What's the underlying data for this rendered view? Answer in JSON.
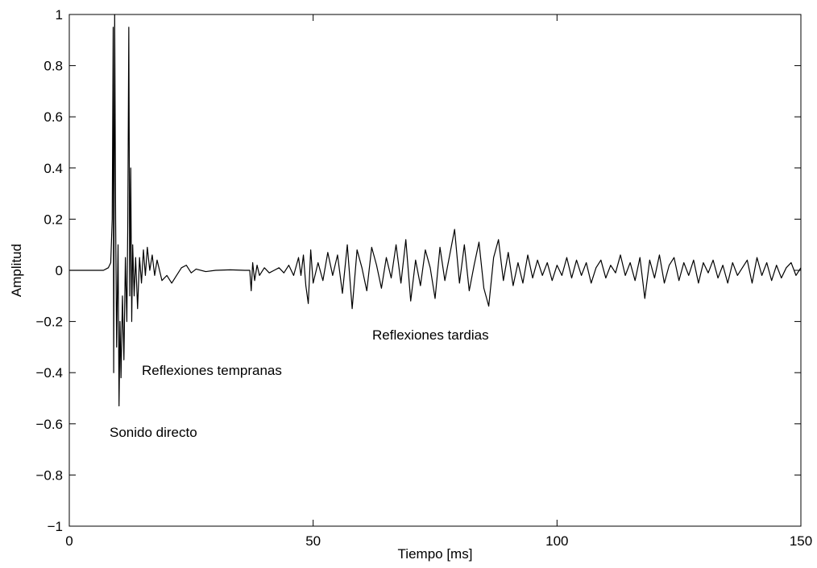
{
  "chart_data": {
    "type": "line",
    "xlabel": "Tiempo [ms]",
    "ylabel": "Amplitud",
    "annotations": [
      "Sonido directo",
      "Reflexiones tempranas",
      "Reflexiones tardias"
    ],
    "xlim": [
      0,
      150
    ],
    "xticks": [
      0,
      50,
      100,
      150
    ],
    "ylim": [
      -1,
      1
    ],
    "yticks": [
      {
        "value": -1,
        "label": "−1"
      },
      {
        "value": -0.8,
        "label": "−0.8"
      },
      {
        "value": -0.6,
        "label": "−0.6"
      },
      {
        "value": -0.4,
        "label": "−0.4"
      },
      {
        "value": -0.2,
        "label": "−0.2"
      },
      0,
      0.2,
      0.4,
      0.6,
      0.8,
      1
    ],
    "series": [
      {
        "color": "#000000",
        "x": [
          0,
          7,
          7.5,
          8,
          8.5,
          8.8,
          9,
          9.1,
          9.3,
          9.5,
          9.7,
          10,
          10.2,
          10.4,
          10.6,
          10.9,
          11.2,
          11.5,
          11.8,
          12,
          12.2,
          12.4,
          12.6,
          12.8,
          13,
          13.3,
          13.6,
          14,
          14.4,
          14.8,
          15.2,
          15.6,
          16,
          16.5,
          17,
          17.5,
          18,
          19,
          20,
          21,
          22,
          23,
          24,
          25,
          26,
          28,
          30,
          33,
          36,
          37,
          37.3,
          37.6,
          38,
          38.5,
          39,
          40,
          41,
          42,
          43,
          44,
          45,
          46,
          47,
          47.5,
          48,
          48.5,
          49,
          49.5,
          50,
          51,
          52,
          53,
          54,
          55,
          56,
          57,
          58,
          59,
          60,
          61,
          62,
          63,
          64,
          65,
          66,
          67,
          68,
          69,
          70,
          71,
          72,
          73,
          74,
          75,
          76,
          77,
          78,
          79,
          80,
          81,
          82,
          83,
          84,
          85,
          86,
          87,
          88,
          89,
          90,
          91,
          92,
          93,
          94,
          95,
          96,
          97,
          98,
          99,
          100,
          101,
          102,
          103,
          104,
          105,
          106,
          107,
          108,
          109,
          110,
          111,
          112,
          113,
          114,
          115,
          116,
          117,
          118,
          119,
          120,
          121,
          122,
          123,
          124,
          125,
          126,
          127,
          128,
          129,
          130,
          131,
          132,
          133,
          134,
          135,
          136,
          137,
          138,
          139,
          140,
          141,
          142,
          143,
          144,
          145,
          146,
          147,
          148,
          149,
          150
        ],
        "values": [
          0,
          0,
          0.005,
          0.01,
          0.03,
          0.2,
          0.95,
          -0.4,
          1,
          0.2,
          -0.3,
          0.1,
          -0.53,
          -0.2,
          -0.42,
          -0.1,
          -0.35,
          0.05,
          -0.2,
          0.2,
          0.95,
          -0.1,
          0.4,
          -0.2,
          0.1,
          -0.1,
          0.05,
          -0.15,
          0.05,
          -0.05,
          0.08,
          -0.02,
          0.09,
          0,
          0.06,
          -0.02,
          0.04,
          -0.04,
          -0.02,
          -0.05,
          -0.02,
          0.01,
          0.02,
          -0.01,
          0.005,
          -0.005,
          0,
          0.002,
          0,
          0,
          -0.08,
          0.03,
          -0.04,
          0.02,
          -0.02,
          0.01,
          -0.01,
          0,
          0.01,
          -0.01,
          0.02,
          -0.02,
          0.05,
          -0.02,
          0.06,
          -0.06,
          -0.13,
          0.08,
          -0.05,
          0.03,
          -0.04,
          0.07,
          -0.02,
          0.06,
          -0.09,
          0.1,
          -0.15,
          0.08,
          0.01,
          -0.08,
          0.09,
          0.02,
          -0.07,
          0.05,
          -0.03,
          0.1,
          -0.05,
          0.12,
          -0.12,
          0.04,
          -0.06,
          0.08,
          0.01,
          -0.11,
          0.09,
          -0.04,
          0.06,
          0.16,
          -0.05,
          0.1,
          -0.08,
          0.02,
          0.11,
          -0.07,
          -0.14,
          0.05,
          0.12,
          -0.04,
          0.07,
          -0.06,
          0.03,
          -0.05,
          0.06,
          -0.03,
          0.04,
          -0.02,
          0.03,
          -0.04,
          0.02,
          -0.02,
          0.05,
          -0.03,
          0.04,
          -0.02,
          0.03,
          -0.05,
          0.01,
          0.04,
          -0.03,
          0.02,
          -0.01,
          0.06,
          -0.02,
          0.03,
          -0.04,
          0.05,
          -0.11,
          0.04,
          -0.03,
          0.06,
          -0.05,
          0.02,
          0.05,
          -0.04,
          0.03,
          -0.02,
          0.04,
          -0.05,
          0.03,
          -0.01,
          0.04,
          -0.03,
          0.02,
          -0.05,
          0.03,
          -0.02,
          0.01,
          0.04,
          -0.05,
          0.05,
          -0.02,
          0.03,
          -0.04,
          0.02,
          -0.03,
          0.01,
          0.03,
          -0.02,
          0.01
        ]
      }
    ]
  }
}
